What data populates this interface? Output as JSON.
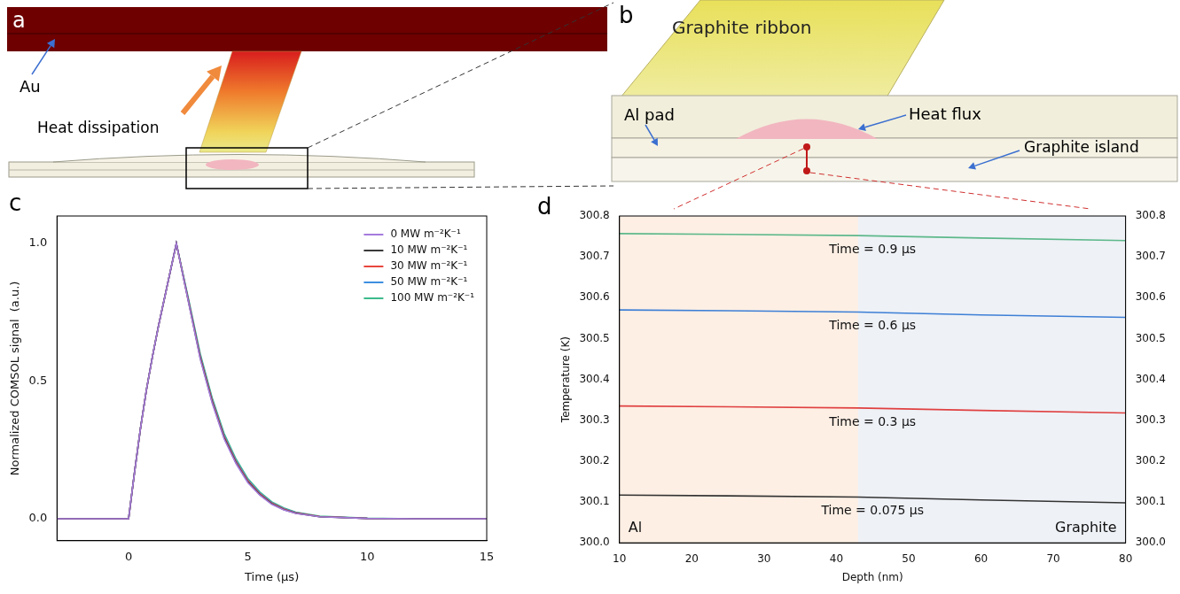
{
  "diagram": {
    "a": {
      "panel_label": "a",
      "au_label": "Au",
      "arrow_label": "Heat dissipation"
    },
    "b": {
      "panel_label": "b",
      "ribbon_label": "Graphite ribbon",
      "pad_label": "Al pad",
      "flux_label": "Heat flux",
      "island_label": "Graphite island"
    }
  },
  "chart_data": [
    {
      "type": "line",
      "panel_label": "c",
      "x_label": "Time (μs)",
      "y_label": "Normalized COMSOL signal  (a.u.)",
      "x": [
        -3,
        -1,
        0,
        0.25,
        0.5,
        0.75,
        1,
        1.25,
        1.5,
        1.75,
        2,
        2.5,
        3,
        3.5,
        4,
        4.5,
        5,
        5.5,
        6,
        6.5,
        7,
        8,
        10,
        12,
        15
      ],
      "series": [
        {
          "name": "0 MW m⁻²K⁻¹",
          "color": "#a57bdc",
          "values": [
            0,
            0,
            0,
            0.17,
            0.33,
            0.47,
            0.59,
            0.7,
            0.8,
            0.9,
            1.0,
            0.79,
            0.58,
            0.42,
            0.29,
            0.2,
            0.13,
            0.085,
            0.052,
            0.032,
            0.019,
            0.007,
            0.001,
            0,
            0
          ]
        },
        {
          "name": "10 MW m⁻²K⁻¹",
          "color": "#3a3a3a",
          "values": [
            0,
            0,
            0,
            0.17,
            0.33,
            0.47,
            0.59,
            0.7,
            0.8,
            0.9,
            1.0,
            0.792,
            0.584,
            0.424,
            0.294,
            0.203,
            0.133,
            0.087,
            0.054,
            0.033,
            0.02,
            0.007,
            0.001,
            0,
            0
          ]
        },
        {
          "name": "30 MW m⁻²K⁻¹",
          "color": "#e8473e",
          "values": [
            0,
            0,
            0,
            0.17,
            0.33,
            0.47,
            0.59,
            0.7,
            0.8,
            0.9,
            1.0,
            0.795,
            0.589,
            0.429,
            0.299,
            0.207,
            0.137,
            0.09,
            0.056,
            0.035,
            0.021,
            0.008,
            0.001,
            0,
            0
          ]
        },
        {
          "name": "50 MW m⁻²K⁻¹",
          "color": "#3d8fe0",
          "values": [
            0,
            0,
            0,
            0.17,
            0.33,
            0.47,
            0.59,
            0.7,
            0.8,
            0.9,
            1.0,
            0.798,
            0.593,
            0.433,
            0.303,
            0.211,
            0.14,
            0.093,
            0.058,
            0.037,
            0.022,
            0.008,
            0.001,
            0,
            0
          ]
        },
        {
          "name": "100 MW m⁻²K⁻¹",
          "color": "#3cba8c",
          "values": [
            0,
            0,
            0,
            0.17,
            0.33,
            0.47,
            0.59,
            0.7,
            0.8,
            0.9,
            1.0,
            0.803,
            0.6,
            0.44,
            0.31,
            0.217,
            0.145,
            0.097,
            0.061,
            0.039,
            0.024,
            0.009,
            0.002,
            0,
            0
          ]
        }
      ],
      "xlim": [
        -3,
        15
      ],
      "xticks": [
        0,
        5,
        10,
        15
      ],
      "ylim": [
        -0.08,
        1.1
      ],
      "yticks": [
        {
          "value": 0,
          "label": "0.0"
        },
        {
          "value": 0.5,
          "label": "0.5"
        },
        {
          "value": 1,
          "label": "1.0"
        }
      ],
      "grid": false,
      "legend": "upper right"
    },
    {
      "type": "line",
      "panel_label": "d",
      "x_label": "Depth (nm)",
      "y_label": "Temperature (K)",
      "x": [
        10,
        25,
        43,
        60,
        80
      ],
      "series": [
        {
          "name": "Time = 0.9 μs",
          "color": "#5cb88a",
          "values": [
            300.757,
            300.755,
            300.752,
            300.746,
            300.74
          ]
        },
        {
          "name": "Time = 0.6 μs",
          "color": "#3d7fd6",
          "values": [
            300.57,
            300.568,
            300.565,
            300.558,
            300.552
          ]
        },
        {
          "name": "Time = 0.3 μs",
          "color": "#e04040",
          "values": [
            300.335,
            300.333,
            300.33,
            300.324,
            300.318
          ]
        },
        {
          "name": "Time = 0.075 μs",
          "color": "#333333",
          "values": [
            300.117,
            300.115,
            300.112,
            300.105,
            300.098
          ]
        }
      ],
      "regions": [
        {
          "label": "Al",
          "xrange": [
            10,
            43
          ],
          "color": "#fdefe4"
        },
        {
          "label": "Graphite",
          "xrange": [
            43,
            80
          ],
          "color": "#eef1f6"
        }
      ],
      "xlim": [
        10,
        80
      ],
      "xticks": [
        10,
        20,
        30,
        40,
        50,
        60,
        70,
        80
      ],
      "ylim": [
        300.0,
        300.8
      ],
      "yticks": [
        {
          "value": 300.0,
          "label": "300.0"
        },
        300.1,
        300.2,
        300.3,
        300.4,
        300.5,
        300.6,
        300.7,
        300.8
      ],
      "y2lim": [
        300.0,
        300.8
      ],
      "y2ticks": [
        {
          "value": 300.0,
          "label": "300.0"
        },
        300.1,
        300.2,
        300.3,
        300.4,
        300.5,
        300.6,
        300.7,
        300.8
      ],
      "grid": false
    }
  ]
}
